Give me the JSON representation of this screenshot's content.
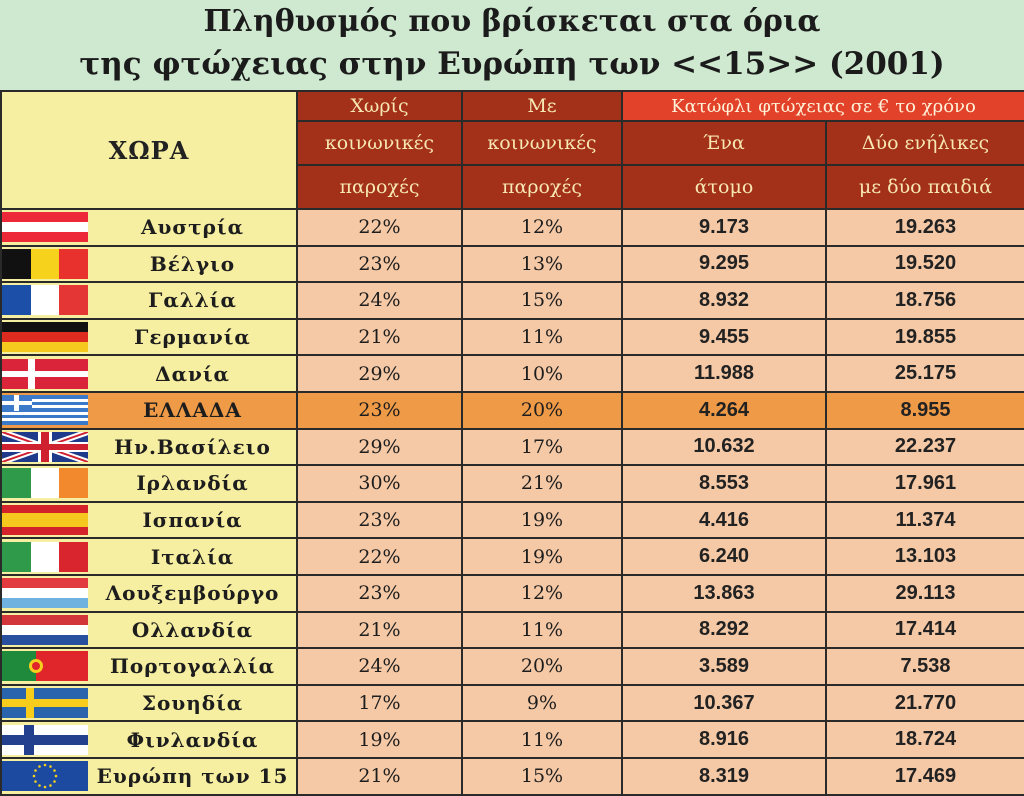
{
  "title": {
    "line1": "Πληθυσμός που βρίσκεται στα όρια",
    "line2": "της φτώχειας στην Ευρώπη των <<15>> (2001)"
  },
  "headers": {
    "country": "ΧΩΡΑ",
    "without_1": "Χωρίς",
    "without_2": "κοινωνικές",
    "without_3": "παροχές",
    "with_1": "Με",
    "with_2": "κοινωνικές",
    "with_3": "παροχές",
    "threshold": "Κατώφλι φτώχειας σε € το χρόνο",
    "single_1": "Ένα",
    "single_2": "άτομο",
    "family_1": "Δύο ενήλικες",
    "family_2": "με δύο παιδιά"
  },
  "rows": [
    {
      "flag": "austria-flag",
      "country": "Αυστρία",
      "without": "22%",
      "with": "12%",
      "single": "9.173",
      "family": "19.263"
    },
    {
      "flag": "belgium-flag",
      "country": "Βέλγιο",
      "without": "23%",
      "with": "13%",
      "single": "9.295",
      "family": "19.520"
    },
    {
      "flag": "france-flag",
      "country": "Γαλλία",
      "without": "24%",
      "with": "15%",
      "single": "8.932",
      "family": "18.756"
    },
    {
      "flag": "germany-flag",
      "country": "Γερμανία",
      "without": "21%",
      "with": "11%",
      "single": "9.455",
      "family": "19.855"
    },
    {
      "flag": "denmark-flag",
      "country": "Δανία",
      "without": "29%",
      "with": "10%",
      "single": "11.988",
      "family": "25.175"
    },
    {
      "flag": "greece-flag",
      "country": "ΕΛΛΑΔΑ",
      "without": "23%",
      "with": "20%",
      "single": "4.264",
      "family": "8.955",
      "highlight": true
    },
    {
      "flag": "uk-flag",
      "country": "Ην.Βασίλειο",
      "without": "29%",
      "with": "17%",
      "single": "10.632",
      "family": "22.237"
    },
    {
      "flag": "ireland-flag",
      "country": "Ιρλανδία",
      "without": "30%",
      "with": "21%",
      "single": "8.553",
      "family": "17.961"
    },
    {
      "flag": "spain-flag",
      "country": "Ισπανία",
      "without": "23%",
      "with": "19%",
      "single": "4.416",
      "family": "11.374"
    },
    {
      "flag": "italy-flag",
      "country": "Ιταλία",
      "without": "22%",
      "with": "19%",
      "single": "6.240",
      "family": "13.103"
    },
    {
      "flag": "luxembourg-flag",
      "country": "Λουξεμβούργο",
      "without": "23%",
      "with": "12%",
      "single": "13.863",
      "family": "29.113"
    },
    {
      "flag": "netherlands-flag",
      "country": "Ολλανδία",
      "without": "21%",
      "with": "11%",
      "single": "8.292",
      "family": "17.414"
    },
    {
      "flag": "portugal-flag",
      "country": "Πορτογαλλία",
      "without": "24%",
      "with": "20%",
      "single": "3.589",
      "family": "7.538"
    },
    {
      "flag": "sweden-flag",
      "country": "Σουηδία",
      "without": "17%",
      "with": "9%",
      "single": "10.367",
      "family": "21.770"
    },
    {
      "flag": "finland-flag",
      "country": "Φινλανδία",
      "without": "19%",
      "with": "11%",
      "single": "8.916",
      "family": "18.724"
    },
    {
      "flag": "eu-flag",
      "country": "Ευρώπη των 15",
      "without": "21%",
      "with": "15%",
      "single": "8.319",
      "family": "17.469"
    }
  ],
  "colors": {
    "header_red": "#a33019",
    "threshold_red": "#e2412a",
    "country_bg": "#f6eea0",
    "cell_bg": "#f5c9a6",
    "highlight": "#ef9a46"
  }
}
